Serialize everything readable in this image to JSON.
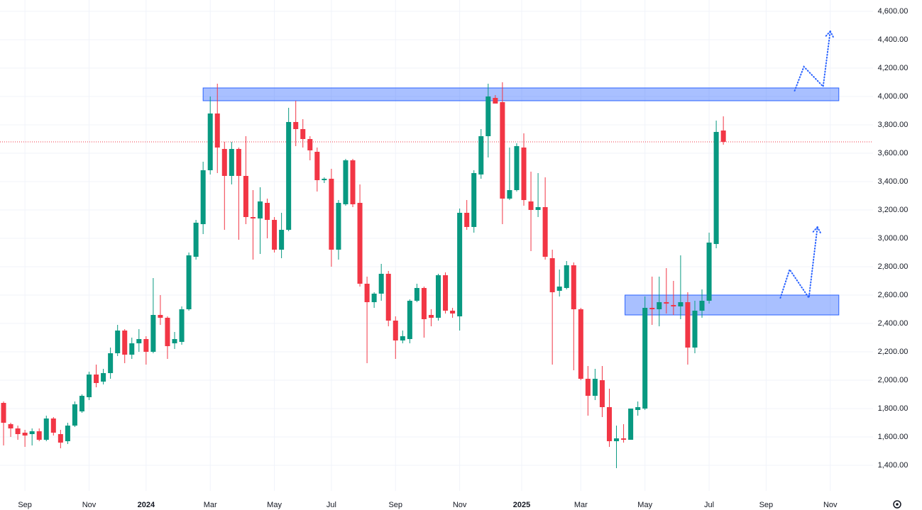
{
  "chart_data": {
    "type": "candlestick",
    "up_color": "#089981",
    "down_color": "#f23645",
    "xlim": [
      -0.5,
      122
    ],
    "ylim": [
      1220,
      4680
    ],
    "yticks": [
      {
        "value": 1400,
        "label": "1,400.00"
      },
      {
        "value": 1600,
        "label": "1,600.00"
      },
      {
        "value": 1800,
        "label": "1,800.00"
      },
      {
        "value": 2000,
        "label": "2,000.00"
      },
      {
        "value": 2200,
        "label": "2,200.00"
      },
      {
        "value": 2400,
        "label": "2,400.00"
      },
      {
        "value": 2600,
        "label": "2,600.00"
      },
      {
        "value": 2800,
        "label": "2,800.00"
      },
      {
        "value": 3000,
        "label": "3,000.00"
      },
      {
        "value": 3200,
        "label": "3,200.00"
      },
      {
        "value": 3400,
        "label": "3,400.00"
      },
      {
        "value": 3600,
        "label": "3,600.00"
      },
      {
        "value": 3800,
        "label": "3,800.00"
      },
      {
        "value": 4000,
        "label": "4,000.00"
      },
      {
        "value": 4200,
        "label": "4,200.00"
      },
      {
        "value": 4400,
        "label": "4,400.00"
      },
      {
        "value": 4600,
        "label": "4,600.00"
      }
    ],
    "xticks": [
      {
        "value": 3,
        "label": "Sep"
      },
      {
        "value": 12,
        "label": "Nov"
      },
      {
        "value": 20,
        "label": "2024"
      },
      {
        "value": 29,
        "label": "Mar"
      },
      {
        "value": 38,
        "label": "May"
      },
      {
        "value": 46,
        "label": "Jul"
      },
      {
        "value": 55,
        "label": "Sep"
      },
      {
        "value": 64,
        "label": "Nov"
      },
      {
        "value": 72.7,
        "label": "2025"
      },
      {
        "value": 81,
        "label": "Mar"
      },
      {
        "value": 90,
        "label": "May"
      },
      {
        "value": 99,
        "label": "Jul"
      },
      {
        "value": 107,
        "label": "Sep"
      },
      {
        "value": 116,
        "label": "Nov"
      }
    ],
    "grid": true,
    "last_price": 3680,
    "last_price_color": "#f23645",
    "candles": [
      {
        "open": 1840,
        "high": 1850,
        "low": 1540,
        "close": 1700
      },
      {
        "open": 1690,
        "high": 1700,
        "low": 1600,
        "close": 1660
      },
      {
        "open": 1660,
        "high": 1680,
        "low": 1580,
        "close": 1620
      },
      {
        "open": 1630,
        "high": 1650,
        "low": 1530,
        "close": 1610
      },
      {
        "open": 1620,
        "high": 1660,
        "low": 1540,
        "close": 1640
      },
      {
        "open": 1640,
        "high": 1660,
        "low": 1570,
        "close": 1580
      },
      {
        "open": 1580,
        "high": 1750,
        "low": 1570,
        "close": 1730
      },
      {
        "open": 1730,
        "high": 1740,
        "low": 1610,
        "close": 1630
      },
      {
        "open": 1620,
        "high": 1650,
        "low": 1520,
        "close": 1560
      },
      {
        "open": 1570,
        "high": 1700,
        "low": 1550,
        "close": 1680
      },
      {
        "open": 1680,
        "high": 1850,
        "low": 1670,
        "close": 1830
      },
      {
        "open": 1780,
        "high": 1900,
        "low": 1770,
        "close": 1890
      },
      {
        "open": 1880,
        "high": 2060,
        "low": 1860,
        "close": 2040
      },
      {
        "open": 2040,
        "high": 2110,
        "low": 1950,
        "close": 1980
      },
      {
        "open": 1990,
        "high": 2080,
        "low": 1970,
        "close": 2050
      },
      {
        "open": 2050,
        "high": 2230,
        "low": 2010,
        "close": 2190
      },
      {
        "open": 2190,
        "high": 2390,
        "low": 2170,
        "close": 2350
      },
      {
        "open": 2350,
        "high": 2360,
        "low": 2120,
        "close": 2180
      },
      {
        "open": 2180,
        "high": 2300,
        "low": 2150,
        "close": 2260
      },
      {
        "open": 2260,
        "high": 2360,
        "low": 2200,
        "close": 2290
      },
      {
        "open": 2290,
        "high": 2310,
        "low": 2110,
        "close": 2200
      },
      {
        "open": 2200,
        "high": 2720,
        "low": 2190,
        "close": 2460
      },
      {
        "open": 2460,
        "high": 2600,
        "low": 2390,
        "close": 2440
      },
      {
        "open": 2440,
        "high": 2450,
        "low": 2150,
        "close": 2240
      },
      {
        "open": 2260,
        "high": 2340,
        "low": 2220,
        "close": 2290
      },
      {
        "open": 2270,
        "high": 2520,
        "low": 2250,
        "close": 2500
      },
      {
        "open": 2500,
        "high": 2900,
        "low": 2490,
        "close": 2880
      },
      {
        "open": 2870,
        "high": 3130,
        "low": 2850,
        "close": 3110
      },
      {
        "open": 3100,
        "high": 3540,
        "low": 3030,
        "close": 3480
      },
      {
        "open": 3480,
        "high": 4000,
        "low": 3450,
        "close": 3880
      },
      {
        "open": 3880,
        "high": 4090,
        "low": 3460,
        "close": 3640
      },
      {
        "open": 3630,
        "high": 3680,
        "low": 3060,
        "close": 3440
      },
      {
        "open": 3440,
        "high": 3680,
        "low": 3380,
        "close": 3630
      },
      {
        "open": 3630,
        "high": 3640,
        "low": 2990,
        "close": 3440
      },
      {
        "open": 3440,
        "high": 3720,
        "low": 3100,
        "close": 3150
      },
      {
        "open": 3150,
        "high": 3340,
        "low": 2850,
        "close": 3140
      },
      {
        "open": 3140,
        "high": 3360,
        "low": 2890,
        "close": 3260
      },
      {
        "open": 3250,
        "high": 3280,
        "low": 3000,
        "close": 3130
      },
      {
        "open": 3130,
        "high": 3150,
        "low": 2900,
        "close": 2920
      },
      {
        "open": 2920,
        "high": 3180,
        "low": 2860,
        "close": 3060
      },
      {
        "open": 3060,
        "high": 3920,
        "low": 3050,
        "close": 3820
      },
      {
        "open": 3820,
        "high": 3970,
        "low": 3650,
        "close": 3770
      },
      {
        "open": 3770,
        "high": 3840,
        "low": 3640,
        "close": 3700
      },
      {
        "open": 3700,
        "high": 3720,
        "low": 3550,
        "close": 3620
      },
      {
        "open": 3610,
        "high": 3640,
        "low": 3330,
        "close": 3410
      },
      {
        "open": 3410,
        "high": 3430,
        "low": 3390,
        "close": 3420
      },
      {
        "open": 3420,
        "high": 3490,
        "low": 2800,
        "close": 2920
      },
      {
        "open": 2920,
        "high": 3270,
        "low": 2850,
        "close": 3250
      },
      {
        "open": 3240,
        "high": 3560,
        "low": 3230,
        "close": 3550
      },
      {
        "open": 3550,
        "high": 3560,
        "low": 3220,
        "close": 3240
      },
      {
        "open": 3250,
        "high": 3380,
        "low": 2660,
        "close": 2680
      },
      {
        "open": 2680,
        "high": 2730,
        "low": 2120,
        "close": 2550
      },
      {
        "open": 2550,
        "high": 2620,
        "low": 2510,
        "close": 2610
      },
      {
        "open": 2610,
        "high": 2820,
        "low": 2560,
        "close": 2750
      },
      {
        "open": 2750,
        "high": 2770,
        "low": 2380,
        "close": 2420
      },
      {
        "open": 2420,
        "high": 2450,
        "low": 2150,
        "close": 2280
      },
      {
        "open": 2280,
        "high": 2350,
        "low": 2260,
        "close": 2310
      },
      {
        "open": 2290,
        "high": 2570,
        "low": 2260,
        "close": 2560
      },
      {
        "open": 2560,
        "high": 2680,
        "low": 2550,
        "close": 2650
      },
      {
        "open": 2650,
        "high": 2660,
        "low": 2300,
        "close": 2430
      },
      {
        "open": 2460,
        "high": 2500,
        "low": 2380,
        "close": 2440
      },
      {
        "open": 2440,
        "high": 2750,
        "low": 2420,
        "close": 2740
      },
      {
        "open": 2740,
        "high": 2760,
        "low": 2470,
        "close": 2490
      },
      {
        "open": 2490,
        "high": 2510,
        "low": 2440,
        "close": 2470
      },
      {
        "open": 2450,
        "high": 3210,
        "low": 2350,
        "close": 3180
      },
      {
        "open": 3180,
        "high": 3270,
        "low": 3060,
        "close": 3080
      },
      {
        "open": 3080,
        "high": 3480,
        "low": 3040,
        "close": 3460
      },
      {
        "open": 3450,
        "high": 3770,
        "low": 3420,
        "close": 3720
      },
      {
        "open": 3720,
        "high": 4090,
        "low": 3570,
        "close": 4000
      },
      {
        "open": 3990,
        "high": 4010,
        "low": 3970,
        "close": 3950
      },
      {
        "open": 3960,
        "high": 4100,
        "low": 3100,
        "close": 3280
      },
      {
        "open": 3280,
        "high": 3640,
        "low": 3270,
        "close": 3340
      },
      {
        "open": 3340,
        "high": 3670,
        "low": 3330,
        "close": 3650
      },
      {
        "open": 3640,
        "high": 3740,
        "low": 3230,
        "close": 3270
      },
      {
        "open": 3260,
        "high": 3470,
        "low": 2910,
        "close": 3200
      },
      {
        "open": 3200,
        "high": 3460,
        "low": 3150,
        "close": 3220
      },
      {
        "open": 3220,
        "high": 3430,
        "low": 2850,
        "close": 2870
      },
      {
        "open": 2860,
        "high": 2920,
        "low": 2110,
        "close": 2620
      },
      {
        "open": 2630,
        "high": 2780,
        "low": 2590,
        "close": 2660
      },
      {
        "open": 2650,
        "high": 2840,
        "low": 2640,
        "close": 2810
      },
      {
        "open": 2810,
        "high": 2830,
        "low": 2070,
        "close": 2500
      },
      {
        "open": 2500,
        "high": 2510,
        "low": 2000,
        "close": 2010
      },
      {
        "open": 2010,
        "high": 2100,
        "low": 1750,
        "close": 1890
      },
      {
        "open": 1890,
        "high": 2080,
        "low": 1860,
        "close": 2010
      },
      {
        "open": 2000,
        "high": 2100,
        "low": 1740,
        "close": 1810
      },
      {
        "open": 1810,
        "high": 1940,
        "low": 1530,
        "close": 1570
      },
      {
        "open": 1570,
        "high": 1680,
        "low": 1380,
        "close": 1590
      },
      {
        "open": 1590,
        "high": 1690,
        "low": 1560,
        "close": 1580
      },
      {
        "open": 1580,
        "high": 1800,
        "low": 1580,
        "close": 1800
      },
      {
        "open": 1790,
        "high": 1850,
        "low": 1750,
        "close": 1810
      },
      {
        "open": 1800,
        "high": 2590,
        "low": 1790,
        "close": 2510
      },
      {
        "open": 2510,
        "high": 2730,
        "low": 2390,
        "close": 2500
      },
      {
        "open": 2500,
        "high": 2730,
        "low": 2380,
        "close": 2550
      },
      {
        "open": 2550,
        "high": 2790,
        "low": 2470,
        "close": 2540
      },
      {
        "open": 2530,
        "high": 2700,
        "low": 2460,
        "close": 2520
      },
      {
        "open": 2520,
        "high": 2880,
        "low": 2430,
        "close": 2550
      },
      {
        "open": 2550,
        "high": 2620,
        "low": 2110,
        "close": 2230
      },
      {
        "open": 2230,
        "high": 2560,
        "low": 2190,
        "close": 2490
      },
      {
        "open": 2490,
        "high": 2640,
        "low": 2440,
        "close": 2560
      },
      {
        "open": 2560,
        "high": 3040,
        "low": 2540,
        "close": 2970
      },
      {
        "open": 2960,
        "high": 3830,
        "low": 2930,
        "close": 3750
      },
      {
        "open": 3760,
        "high": 3860,
        "low": 3660,
        "close": 3680
      }
    ],
    "zones": [
      {
        "x0": 28,
        "x1": 117.2,
        "y0": 3970,
        "y1": 4060
      },
      {
        "x0": 87.2,
        "x1": 117.2,
        "y0": 2460,
        "y1": 2600
      }
    ],
    "zone_color": "#2962ff",
    "arrows": [
      {
        "x": [
          111,
          112.3,
          115,
          116
        ],
        "y": [
          4040,
          4210,
          4070,
          4460
        ]
      },
      {
        "x": [
          109,
          110.3,
          113,
          114.2
        ],
        "y": [
          2580,
          2780,
          2580,
          3080
        ]
      }
    ],
    "arrow_color": "#2962ff"
  }
}
